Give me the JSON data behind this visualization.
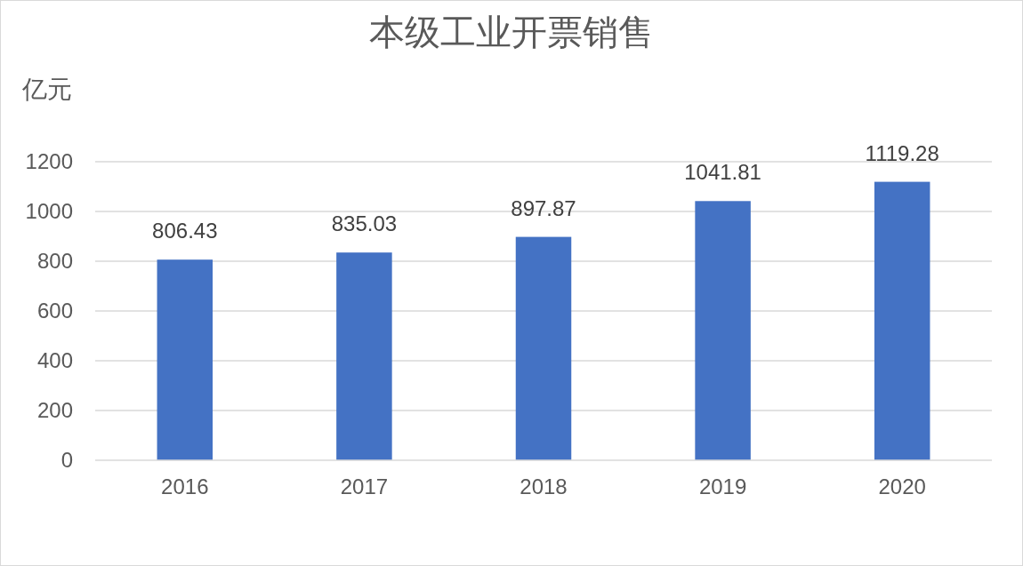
{
  "chart_data": {
    "type": "bar",
    "title": "本级工业开票销售",
    "ylabel": "亿元",
    "categories": [
      "2016",
      "2017",
      "2018",
      "2019",
      "2020"
    ],
    "values": [
      806.43,
      835.03,
      897.87,
      1041.81,
      1119.28
    ],
    "color": "#4472c4",
    "ylim": [
      0,
      1200
    ],
    "yticks": [
      0,
      200,
      400,
      600,
      800,
      1000,
      1200
    ],
    "grid": "y",
    "data_labels": true
  }
}
